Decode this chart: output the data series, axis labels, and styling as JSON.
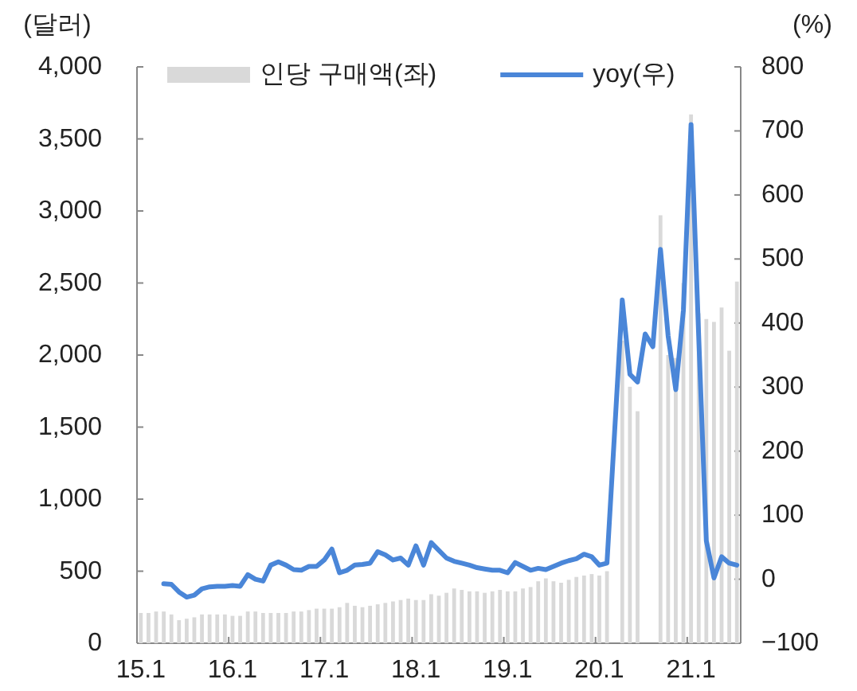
{
  "chart_data": {
    "type": "bar",
    "ylabel": "(달러)",
    "y2label": "(%)",
    "legend": "top",
    "categories": [
      "15.1",
      null,
      null,
      null,
      null,
      null,
      null,
      null,
      null,
      null,
      null,
      null,
      "16.1",
      null,
      null,
      null,
      null,
      null,
      null,
      null,
      null,
      null,
      null,
      null,
      "17.1",
      null,
      null,
      null,
      null,
      null,
      null,
      null,
      null,
      null,
      null,
      null,
      "18.1",
      null,
      null,
      null,
      null,
      null,
      null,
      null,
      null,
      null,
      null,
      null,
      "19.1",
      null,
      null,
      null,
      null,
      null,
      null,
      null,
      null,
      null,
      null,
      null,
      "20.1",
      null,
      null,
      null,
      null,
      null,
      null,
      null,
      null,
      null,
      null,
      null,
      "21.1",
      null,
      null,
      null,
      null,
      null,
      null
    ],
    "series": [
      {
        "name": "인당 구매액(좌)",
        "color": "#d9d9d9",
        "values": [
          210,
          210,
          220,
          220,
          200,
          160,
          170,
          180,
          200,
          200,
          200,
          200,
          190,
          190,
          220,
          220,
          210,
          210,
          210,
          210,
          220,
          220,
          230,
          240,
          240,
          240,
          250,
          280,
          260,
          250,
          260,
          270,
          280,
          290,
          300,
          310,
          300,
          300,
          340,
          330,
          350,
          380,
          370,
          360,
          360,
          350,
          360,
          370,
          360,
          360,
          380,
          390,
          430,
          450,
          430,
          420,
          440,
          460,
          470,
          480,
          470,
          500,
          null,
          2100,
          1780,
          1610,
          null,
          null,
          2970,
          2000,
          1980,
          2500,
          3670,
          2290,
          2250,
          2230,
          2330,
          2030,
          2510
        ]
      },
      {
        "name": "yoy(우)",
        "type": "line",
        "axis": "y2",
        "color": "#4a86d8",
        "values": [
          null,
          null,
          null,
          -7,
          -8,
          -20,
          -28,
          -25,
          -15,
          -12,
          -11,
          -11,
          -10,
          -11,
          7,
          0,
          -3,
          22,
          27,
          22,
          15,
          14,
          20,
          20,
          30,
          47,
          10,
          14,
          22,
          23,
          25,
          43,
          38,
          30,
          33,
          22,
          52,
          22,
          57,
          45,
          33,
          28,
          25,
          22,
          18,
          16,
          14,
          14,
          10,
          26,
          20,
          14,
          17,
          15,
          20,
          25,
          29,
          32,
          39,
          35,
          22,
          25,
          230,
          436,
          320,
          308,
          383,
          363,
          515,
          380,
          296,
          420,
          710,
          380,
          60,
          2,
          35,
          25,
          22
        ]
      }
    ],
    "ylim": [
      0,
      4000
    ],
    "yticks": [
      0,
      500,
      {
        "value": 1000,
        "label": "1,000"
      },
      {
        "value": 1500,
        "label": "1,500"
      },
      {
        "value": 2000,
        "label": "2,000"
      },
      {
        "value": 2500,
        "label": "2,500"
      },
      {
        "value": 3000,
        "label": "3,000"
      },
      {
        "value": 3500,
        "label": "3,500"
      },
      {
        "value": 4000,
        "label": "4,000"
      }
    ],
    "y2lim": [
      -100,
      800
    ],
    "y2ticks": [
      {
        "value": -100,
        "label": "−100"
      },
      0,
      100,
      200,
      300,
      400,
      500,
      600,
      700,
      800
    ]
  }
}
